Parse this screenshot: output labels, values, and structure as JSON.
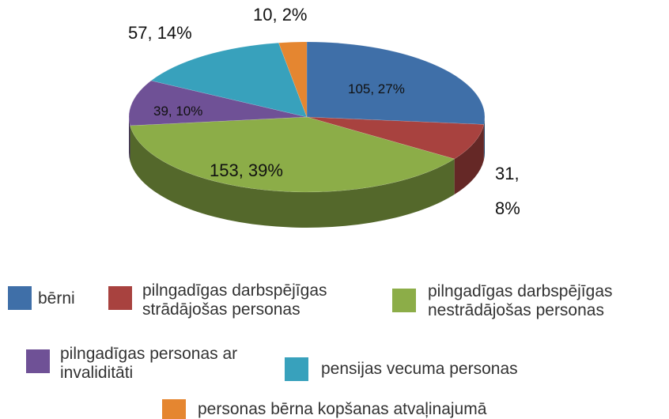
{
  "chart_data": {
    "type": "pie",
    "categories": [
      "bērni",
      "pilngadīgas darbspējīgas strādājošas personas",
      "pilngadīgas darbspējīgas nestrādājošas personas",
      "pilngadīgas personas ar invaliditāti",
      "pensijas vecuma personas",
      "personas bērna kopšanas atvaļinajumā"
    ],
    "values": [
      105,
      31,
      153,
      39,
      57,
      10
    ],
    "value_labels": [
      "105, 27%",
      "31, 8%",
      "153, 39%",
      "39, 10%",
      "57, 14%",
      "10, 2%"
    ],
    "colors": [
      "#3f6fa8",
      "#a8423f",
      "#8cad48",
      "#6f5196",
      "#38a1bc",
      "#e58630"
    ],
    "legend": "bottom"
  }
}
